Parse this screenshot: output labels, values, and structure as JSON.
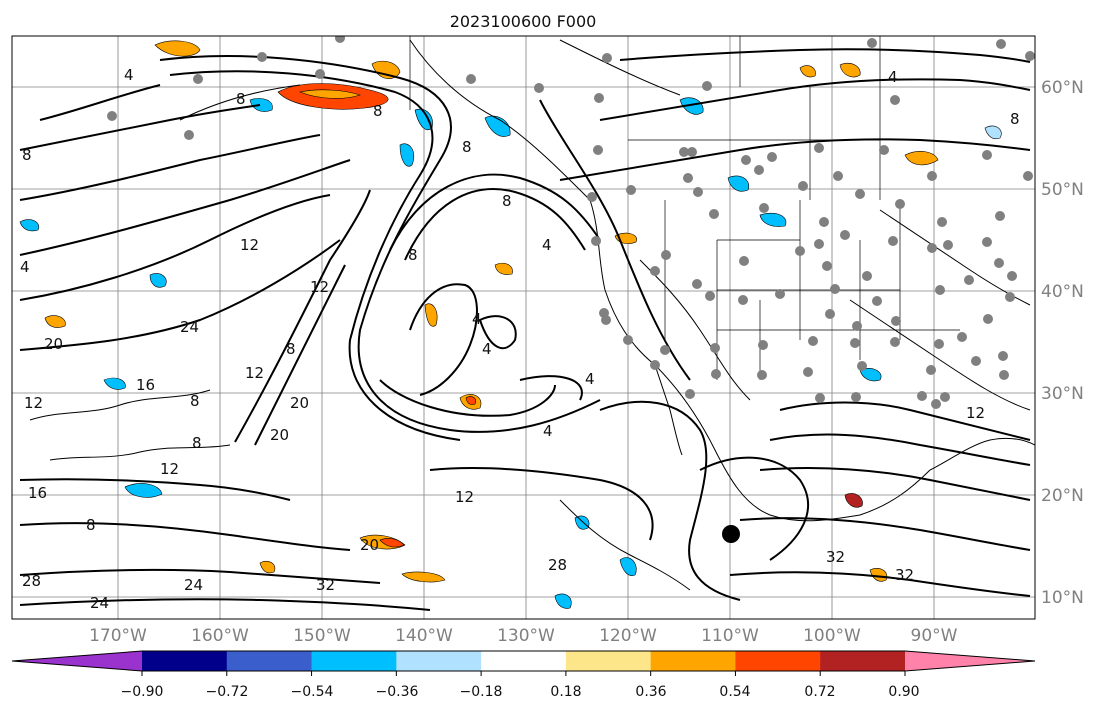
{
  "map": {
    "title": "2023100600 F000",
    "latitude_labels": [
      "60°N",
      "50°N",
      "40°N",
      "30°N",
      "20°N",
      "10°N"
    ],
    "longitude_labels": [
      "170°W",
      "160°W",
      "150°W",
      "140°W",
      "130°W",
      "120°W",
      "110°W",
      "100°W",
      "90°W"
    ],
    "contour_labels": [
      "4",
      "8",
      "12",
      "16",
      "20",
      "24",
      "28",
      "32"
    ],
    "colorbar": {
      "tick_labels": [
        "−0.90",
        "−0.72",
        "−0.54",
        "−0.36",
        "−0.18",
        "0.18",
        "0.36",
        "0.54",
        "0.72",
        "0.90"
      ],
      "colors": [
        "#9a32cd",
        "#00008b",
        "#3a5fcd",
        "#00bfff",
        "#b0e2ff",
        "#ffffff",
        "#fde68a",
        "#ffa500",
        "#ff4500",
        "#b22222",
        "#ff82ab"
      ]
    },
    "colors": {
      "frame": "#000000",
      "grid": "#808080",
      "contour": "#000000",
      "coast": "#000000",
      "station_dots": "#808080"
    }
  }
}
